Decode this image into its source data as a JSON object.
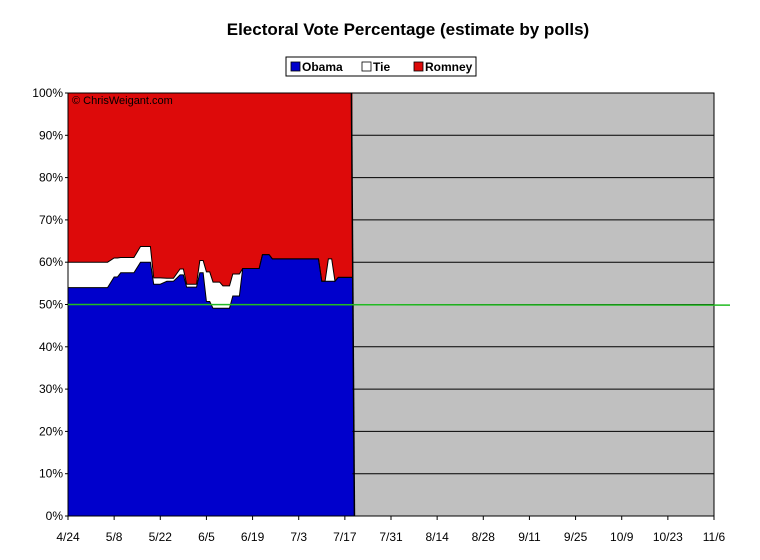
{
  "chart_data": {
    "type": "area",
    "title": "Electoral Vote Percentage (estimate by polls)",
    "copyright": "© ChrisWeigant.com",
    "xlabel": "",
    "ylabel": "",
    "x_ticks": [
      "4/24",
      "5/8",
      "5/22",
      "6/5",
      "6/19",
      "7/3",
      "7/17",
      "7/31",
      "8/14",
      "8/28",
      "9/11",
      "9/25",
      "10/9",
      "10/23",
      "11/6"
    ],
    "y_ticks": [
      "0%",
      "10%",
      "20%",
      "30%",
      "40%",
      "50%",
      "60%",
      "70%",
      "80%",
      "90%",
      "100%"
    ],
    "ylim": [
      0,
      100
    ],
    "legend_position": "top-center",
    "series": [
      {
        "name": "Obama",
        "color": "#0000cc"
      },
      {
        "name": "Tie",
        "color": "#ffffff"
      },
      {
        "name": "Romney",
        "color": "#dd0a0a"
      }
    ],
    "data_end_date": "7/19",
    "future_region_color": "#c0c0c0",
    "reference_line": {
      "value": 50,
      "color": "#22bb22"
    },
    "x": [
      "4/24",
      "4/26",
      "4/28",
      "4/30",
      "5/2",
      "5/4",
      "5/6",
      "5/8",
      "5/9",
      "5/10",
      "5/11",
      "5/12",
      "5/14",
      "5/16",
      "5/18",
      "5/19",
      "5/20",
      "5/21",
      "5/22",
      "5/24",
      "5/26",
      "5/28",
      "5/29",
      "5/30",
      "5/31",
      "6/1",
      "6/2",
      "6/3",
      "6/4",
      "6/5",
      "6/6",
      "6/7",
      "6/8",
      "6/9",
      "6/10",
      "6/11",
      "6/12",
      "6/13",
      "6/14",
      "6/15",
      "6/16",
      "6/17",
      "6/18",
      "6/19",
      "6/20",
      "6/21",
      "6/22",
      "6/23",
      "6/24",
      "6/25",
      "6/26",
      "6/27",
      "6/28",
      "6/30",
      "7/1",
      "7/2",
      "7/3",
      "7/5",
      "7/7",
      "7/9",
      "7/10",
      "7/11",
      "7/12",
      "7/13",
      "7/14",
      "7/15",
      "7/16",
      "7/17",
      "7/18",
      "7/19"
    ],
    "obama": [
      54,
      54,
      54,
      54,
      54,
      54,
      54,
      56.5,
      56.5,
      57.5,
      57.5,
      57.5,
      57.5,
      60,
      60,
      60,
      54.8,
      54.8,
      54.8,
      55.5,
      55.5,
      57,
      57,
      54.1,
      54.1,
      54.1,
      54.1,
      57.5,
      57.5,
      50.7,
      50.7,
      49.1,
      49.1,
      49.1,
      49.1,
      49.1,
      49.1,
      52,
      52,
      52,
      58.5,
      58.5,
      58.5,
      58.5,
      58.5,
      58.5,
      61.8,
      61.8,
      61.8,
      60.8,
      60.8,
      60.8,
      60.8,
      60.8,
      60.8,
      60.8,
      60.8,
      60.8,
      60.8,
      60.8,
      55.5,
      55.5,
      55.5,
      55.5,
      55.5,
      56.4,
      56.4,
      56.4,
      56.4,
      56.4
    ],
    "romney": [
      40,
      40,
      40,
      40,
      40,
      40,
      40,
      39,
      39,
      38.9,
      38.9,
      38.9,
      38.9,
      36.3,
      36.3,
      36.3,
      43.7,
      43.7,
      43.7,
      43.8,
      43.8,
      41.6,
      41.6,
      45.2,
      45.2,
      45.2,
      45.2,
      39.6,
      39.6,
      42.3,
      42.3,
      44.7,
      44.7,
      44.7,
      45.6,
      45.6,
      45.6,
      42.8,
      42.8,
      42.8,
      41.5,
      41.5,
      41.5,
      41.5,
      41.5,
      41.5,
      38.2,
      38.2,
      38.2,
      39.2,
      39.2,
      39.2,
      39.2,
      39.2,
      39.2,
      39.2,
      39.2,
      39.2,
      39.2,
      39.2,
      44.5,
      44.5,
      39.2,
      39.2,
      44.5,
      43.6,
      43.6,
      43.6,
      43.6,
      43.6
    ]
  }
}
